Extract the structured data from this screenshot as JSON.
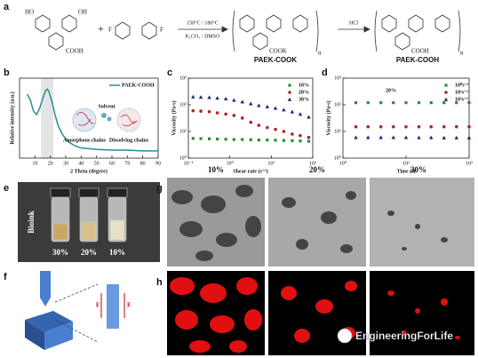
{
  "figure": {
    "panel_labels": [
      "a",
      "b",
      "c",
      "d",
      "e",
      "f",
      "g",
      "h"
    ],
    "scheme": {
      "conditions_top": "150°C / 180°C",
      "conditions_bottom": "K₂CO₃ / DMSO",
      "reagent": "HCl",
      "product_1": "PAEK-COOK",
      "product_2": "PAEK-COOH",
      "groups": [
        "HO",
        "OH",
        "COOH",
        "F",
        "F",
        "COOK",
        "COOH",
        "n",
        "n"
      ]
    },
    "bioink": "Bioink",
    "vial_labels": [
      "30%",
      "20%",
      "10%"
    ],
    "column_headers": [
      "10%",
      "20%",
      "30%"
    ],
    "force_labels": [
      "F",
      "F"
    ],
    "watermark": "EngineeringForLife"
  },
  "chart_data": [
    {
      "type": "line",
      "xlabel": "2 Theta (degree)",
      "ylabel": "Relative intensity (a.u.)",
      "x": [
        5,
        7,
        9,
        11,
        13,
        15,
        17,
        18,
        19,
        21,
        23,
        25,
        28,
        32,
        36,
        40,
        50,
        60,
        70,
        80,
        90
      ],
      "series": [
        {
          "name": "PAEK-COOH",
          "color": "#2a8a9a",
          "values": [
            0.88,
            0.8,
            0.65,
            0.6,
            0.68,
            0.82,
            0.93,
            0.95,
            0.92,
            0.78,
            0.6,
            0.45,
            0.32,
            0.22,
            0.17,
            0.14,
            0.12,
            0.11,
            0.11,
            0.1,
            0.1
          ]
        }
      ],
      "shaded_range": [
        14,
        22
      ],
      "xlim": [
        0,
        90
      ],
      "xticks": [
        10,
        20,
        30,
        40,
        50,
        60,
        70,
        80,
        90
      ],
      "ylim": [
        0,
        1.1
      ],
      "annotations": [
        "Amorphous chains",
        "Solvent",
        "Dissolving chains"
      ]
    },
    {
      "type": "scatter",
      "xlabel": "Shear rate (s⁻¹)",
      "ylabel": "Viscosity (Pa·s)",
      "xscale": "log",
      "yscale": "log",
      "x": [
        0.13,
        0.2,
        0.32,
        0.5,
        0.8,
        1.26,
        2,
        3.2,
        5,
        8,
        12.6,
        20,
        32,
        50,
        80
      ],
      "series": [
        {
          "name": "10%",
          "color": "#2e8b3a",
          "marker": "square",
          "values": [
            5.5,
            5.4,
            5.3,
            5.2,
            5.1,
            5,
            5,
            4.9,
            4.8,
            4.8,
            4.7,
            4.6,
            4.5,
            4.4,
            4.3
          ]
        },
        {
          "name": "20%",
          "color": "#b22222",
          "marker": "circle",
          "values": [
            60,
            58,
            55,
            50,
            45,
            40,
            32,
            22,
            17,
            14,
            12,
            10,
            8,
            7,
            6
          ]
        },
        {
          "name": "30%",
          "color": "#1a237e",
          "marker": "triangle",
          "values": [
            200,
            195,
            190,
            180,
            170,
            150,
            130,
            110,
            95,
            85,
            75,
            65,
            55,
            45,
            35
          ]
        }
      ],
      "xlim": [
        0.1,
        100
      ],
      "xticks": [
        {
          "value": 0.1,
          "label": "10⁻¹"
        },
        {
          "value": 1,
          "label": "10⁰"
        },
        {
          "value": 10,
          "label": "10¹"
        },
        {
          "value": 100,
          "label": "10²"
        }
      ],
      "ylim": [
        1,
        1000
      ],
      "yticks": [
        {
          "value": 1,
          "label": "10⁰"
        },
        {
          "value": 10,
          "label": "10¹"
        },
        {
          "value": 100,
          "label": "10²"
        },
        {
          "value": 1000,
          "label": "10³"
        }
      ]
    },
    {
      "type": "scatter",
      "xlabel": "Time (s)",
      "ylabel": "Viscosity (Pa·s)",
      "xscale": "log",
      "yscale": "log",
      "x": [
        1.6,
        2.5,
        4,
        6.3,
        10,
        16,
        25,
        40,
        63,
        100
      ],
      "series": [
        {
          "name": "10⁰s⁻¹",
          "color": "#2e8b3a",
          "marker": "square",
          "values": [
            120,
            120,
            120,
            120,
            120,
            120,
            120,
            120,
            120,
            120
          ]
        },
        {
          "name": "10¹s⁻¹",
          "color": "#b22222",
          "marker": "circle",
          "values": [
            15,
            15,
            15,
            15,
            15,
            15,
            15,
            15,
            15,
            15
          ]
        },
        {
          "name": "10²s⁻¹",
          "color": "#1a237e",
          "marker": "triangle",
          "values": [
            6,
            6,
            6,
            6,
            6,
            5.9,
            5.9,
            5.8,
            5.8,
            5.8
          ]
        }
      ],
      "xlim": [
        1,
        100
      ],
      "xticks": [
        {
          "value": 1,
          "label": "10⁰"
        },
        {
          "value": 10,
          "label": "10¹"
        },
        {
          "value": 100,
          "label": "10²"
        }
      ],
      "ylim": [
        1,
        1000
      ],
      "yticks": [
        {
          "value": 1,
          "label": "10⁰"
        },
        {
          "value": 10,
          "label": "10¹"
        },
        {
          "value": 100,
          "label": "10²"
        },
        {
          "value": 1000,
          "label": "10³"
        }
      ],
      "annotations": [
        "20%"
      ]
    }
  ]
}
